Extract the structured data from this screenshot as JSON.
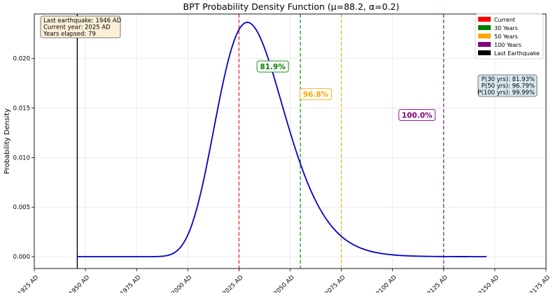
{
  "chart_data": {
    "type": "line",
    "title": "BPT Probability Density Function (μ=88.2, α=0.2)",
    "xlabel": "",
    "ylabel": "Probability Density",
    "xlim": [
      1925,
      2175
    ],
    "ylim": [
      -0.0012,
      0.0245
    ],
    "x_ticks": [
      1925,
      1950,
      1975,
      2000,
      2025,
      2050,
      2075,
      2100,
      2125,
      2150,
      2175
    ],
    "x_tick_labels": [
      "1925 AD",
      "1950 AD",
      "1975 AD",
      "2000 AD",
      "2025 AD",
      "2050 AD",
      "2075 AD",
      "2100 AD",
      "2125 AD",
      "2150 AD",
      "2175 AD"
    ],
    "y_ticks": [
      0.0,
      0.005,
      0.01,
      0.015,
      0.02
    ],
    "y_tick_labels": [
      "0.000",
      "0.005",
      "0.010",
      "0.015",
      "0.020"
    ],
    "grid": true,
    "curve": {
      "mu": 88.2,
      "alpha": 0.2,
      "origin_year": 1946,
      "x_end": 2146,
      "color": "#0000cc"
    },
    "vlines": [
      {
        "x": 1946,
        "color": "#000000",
        "style": "solid"
      },
      {
        "x": 2025,
        "color": "#ff0000",
        "style": "dashed"
      },
      {
        "x": 2055,
        "color": "#008000",
        "style": "dashed"
      },
      {
        "x": 2075,
        "color": "#ffa500",
        "style": "dashed"
      },
      {
        "x": 2125,
        "color": "#800080",
        "style": "dashed"
      }
    ],
    "annotations": [
      {
        "text": "81.9%",
        "x": 2041.5,
        "y": 0.0192,
        "color": "#008000"
      },
      {
        "text": "96.8%",
        "x": 2062.5,
        "y": 0.0164,
        "color": "#ffa500"
      },
      {
        "text": "100.0%",
        "x": 2112,
        "y": 0.0143,
        "color": "#800080"
      }
    ],
    "legend": {
      "position": "top-right",
      "entries": [
        {
          "label": "Current",
          "color": "#ff0000"
        },
        {
          "label": "30 Years",
          "color": "#008000"
        },
        {
          "label": "50 Years",
          "color": "#ffa500"
        },
        {
          "label": "100 Years",
          "color": "#800080"
        },
        {
          "label": "Last Earthquake",
          "color": "#000000"
        }
      ]
    },
    "info_box": {
      "lines": [
        "Last earthquake: 1946 AD",
        "Current year: 2025 AD",
        "Years elapsed: 79"
      ]
    },
    "prob_box": {
      "lines": [
        "P(30 yrs): 81.93%",
        "P(50 yrs): 96.79%",
        "P(100 yrs): 99.99%"
      ]
    }
  }
}
